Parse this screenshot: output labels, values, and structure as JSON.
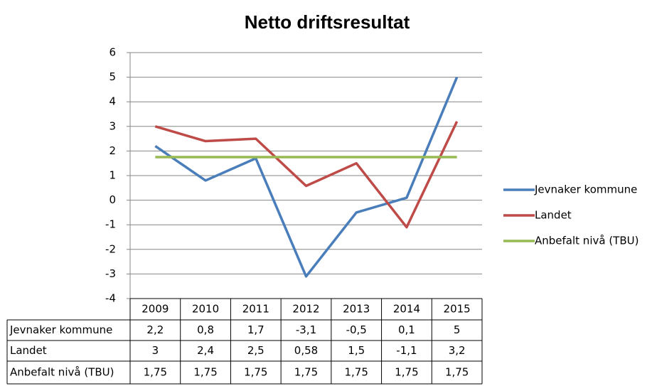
{
  "chart_data": {
    "type": "line",
    "title": "Netto driftsresultat",
    "categories": [
      "2009",
      "2010",
      "2011",
      "2012",
      "2013",
      "2014",
      "2015"
    ],
    "series": [
      {
        "name": "Jevnaker kommune",
        "color": "#4a7ebb",
        "values": [
          2.2,
          0.8,
          1.7,
          -3.1,
          -0.5,
          0.1,
          5
        ],
        "value_labels": [
          "2,2",
          "0,8",
          "1,7",
          "-3,1",
          "-0,5",
          "0,1",
          "5"
        ]
      },
      {
        "name": "Landet",
        "color": "#be4b48",
        "values": [
          3,
          2.4,
          2.5,
          0.58,
          1.5,
          -1.1,
          3.2
        ],
        "value_labels": [
          "3",
          "2,4",
          "2,5",
          "0,58",
          "1,5",
          "-1,1",
          "3,2"
        ]
      },
      {
        "name": "Anbefalt nivå (TBU)",
        "color": "#98b954",
        "values": [
          1.75,
          1.75,
          1.75,
          1.75,
          1.75,
          1.75,
          1.75
        ],
        "value_labels": [
          "1,75",
          "1,75",
          "1,75",
          "1,75",
          "1,75",
          "1,75",
          "1,75"
        ]
      }
    ],
    "ylim": [
      -4,
      6
    ],
    "yticks": [
      -4,
      -3,
      -2,
      -1,
      0,
      1,
      2,
      3,
      4,
      5,
      6
    ],
    "grid": true,
    "legend": "right",
    "data_table": true
  }
}
